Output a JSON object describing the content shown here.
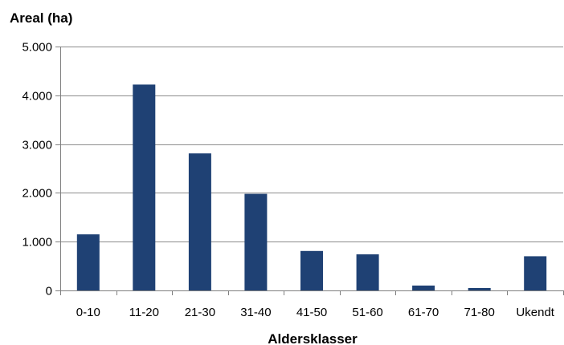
{
  "chart_data": {
    "type": "bar",
    "title": "",
    "ylabel": "Areal (ha)",
    "xlabel": "Aldersklasser",
    "categories": [
      "0-10",
      "11-20",
      "21-30",
      "31-40",
      "41-50",
      "51-60",
      "61-70",
      "71-80",
      "Ukendt"
    ],
    "values": [
      1150,
      4220,
      2810,
      1980,
      810,
      740,
      100,
      50,
      700
    ],
    "ylim": [
      0,
      5000
    ],
    "yticks": [
      0,
      1000,
      2000,
      3000,
      4000,
      5000
    ],
    "ytick_labels": [
      "0",
      "1.000",
      "2.000",
      "3.000",
      "4.000",
      "5.000"
    ],
    "grid": true,
    "legend": false,
    "colors": {
      "bar": "#1F4174",
      "grid": "#8C8C8C",
      "axis": "#7F7F7F"
    }
  }
}
